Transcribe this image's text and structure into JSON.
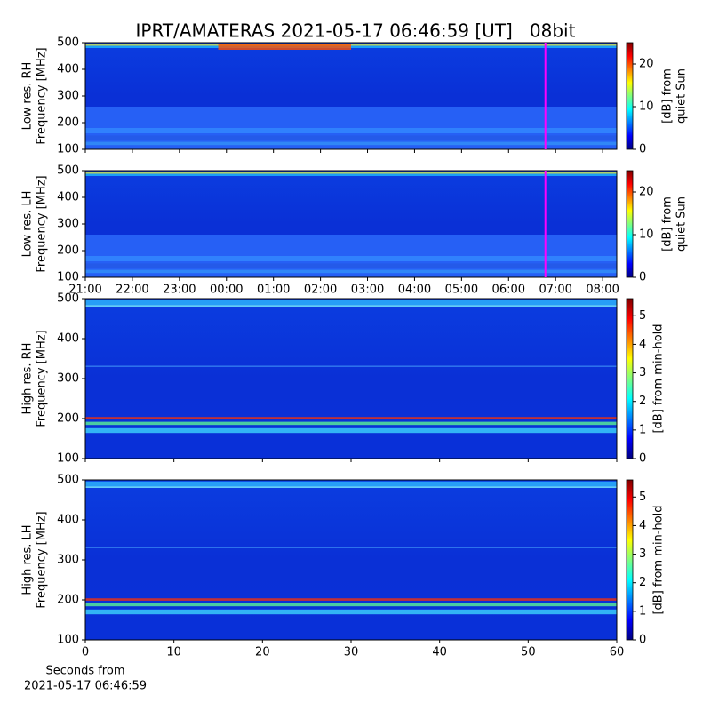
{
  "title": "IPRT/AMATERAS 2021-05-17 06:46:59 [UT]   08bit",
  "colormap": [
    "#00007f",
    "#0000ff",
    "#007fff",
    "#00ffff",
    "#7fff7f",
    "#ffff00",
    "#ff7f00",
    "#ff0000",
    "#7f0000"
  ],
  "chart_data": [
    {
      "type": "heatmap",
      "ylabel": [
        "Low res. RH",
        "Frequency [MHz]"
      ],
      "ylim": [
        100,
        500
      ],
      "yticks": [
        100,
        200,
        300,
        400,
        500
      ],
      "xlim": [
        0,
        11.3
      ],
      "sharex": 1,
      "cursor_x": 9.783,
      "cursor_color": "#ff00ff",
      "colorbar": {
        "label": [
          "[dB] from",
          "quiet Sun"
        ],
        "lim": [
          0,
          25
        ],
        "ticks": [
          0,
          10,
          20
        ]
      }
    },
    {
      "type": "heatmap",
      "ylabel": [
        "Low res. LH",
        "Frequency [MHz]"
      ],
      "ylim": [
        100,
        500
      ],
      "yticks": [
        100,
        200,
        300,
        400,
        500
      ],
      "xlim": [
        0,
        11.3
      ],
      "xticks": [
        {
          "value": 0,
          "label": "21:00"
        },
        {
          "value": 1,
          "label": "22:00"
        },
        {
          "value": 2,
          "label": "23:00"
        },
        {
          "value": 3,
          "label": "00:00"
        },
        {
          "value": 4,
          "label": "01:00"
        },
        {
          "value": 5,
          "label": "02:00"
        },
        {
          "value": 6,
          "label": "03:00"
        },
        {
          "value": 7,
          "label": "04:00"
        },
        {
          "value": 8,
          "label": "05:00"
        },
        {
          "value": 9,
          "label": "06:00"
        },
        {
          "value": 10,
          "label": "07:00"
        },
        {
          "value": 11,
          "label": "08:00"
        }
      ],
      "cursor_x": 9.783,
      "cursor_color": "#ff00ff",
      "colorbar": {
        "label": [
          "[dB] from",
          "quiet Sun"
        ],
        "lim": [
          0,
          25
        ],
        "ticks": [
          0,
          10,
          20
        ]
      }
    },
    {
      "type": "heatmap",
      "ylabel": [
        "High res. RH",
        "Frequency [MHz]"
      ],
      "ylim": [
        100,
        500
      ],
      "yticks": [
        100,
        200,
        300,
        400,
        500
      ],
      "xlim": [
        0,
        60
      ],
      "sharex": 3,
      "colorbar": {
        "label": [
          "[dB] from min-hold"
        ],
        "lim": [
          0,
          5.6
        ],
        "ticks": [
          0,
          1,
          2,
          3,
          4,
          5
        ]
      }
    },
    {
      "type": "heatmap",
      "ylabel": [
        "High res. LH",
        "Frequency [MHz]"
      ],
      "ylim": [
        100,
        500
      ],
      "yticks": [
        100,
        200,
        300,
        400,
        500
      ],
      "xlim": [
        0,
        60
      ],
      "xticks": [
        0,
        10,
        20,
        30,
        40,
        50,
        60
      ],
      "xlabel": [
        "Seconds from",
        "2021-05-17 06:46:59"
      ],
      "colorbar": {
        "label": [
          "[dB] from min-hold"
        ],
        "lim": [
          0,
          5.6
        ],
        "ticks": [
          0,
          1,
          2,
          3,
          4,
          5
        ]
      }
    }
  ]
}
